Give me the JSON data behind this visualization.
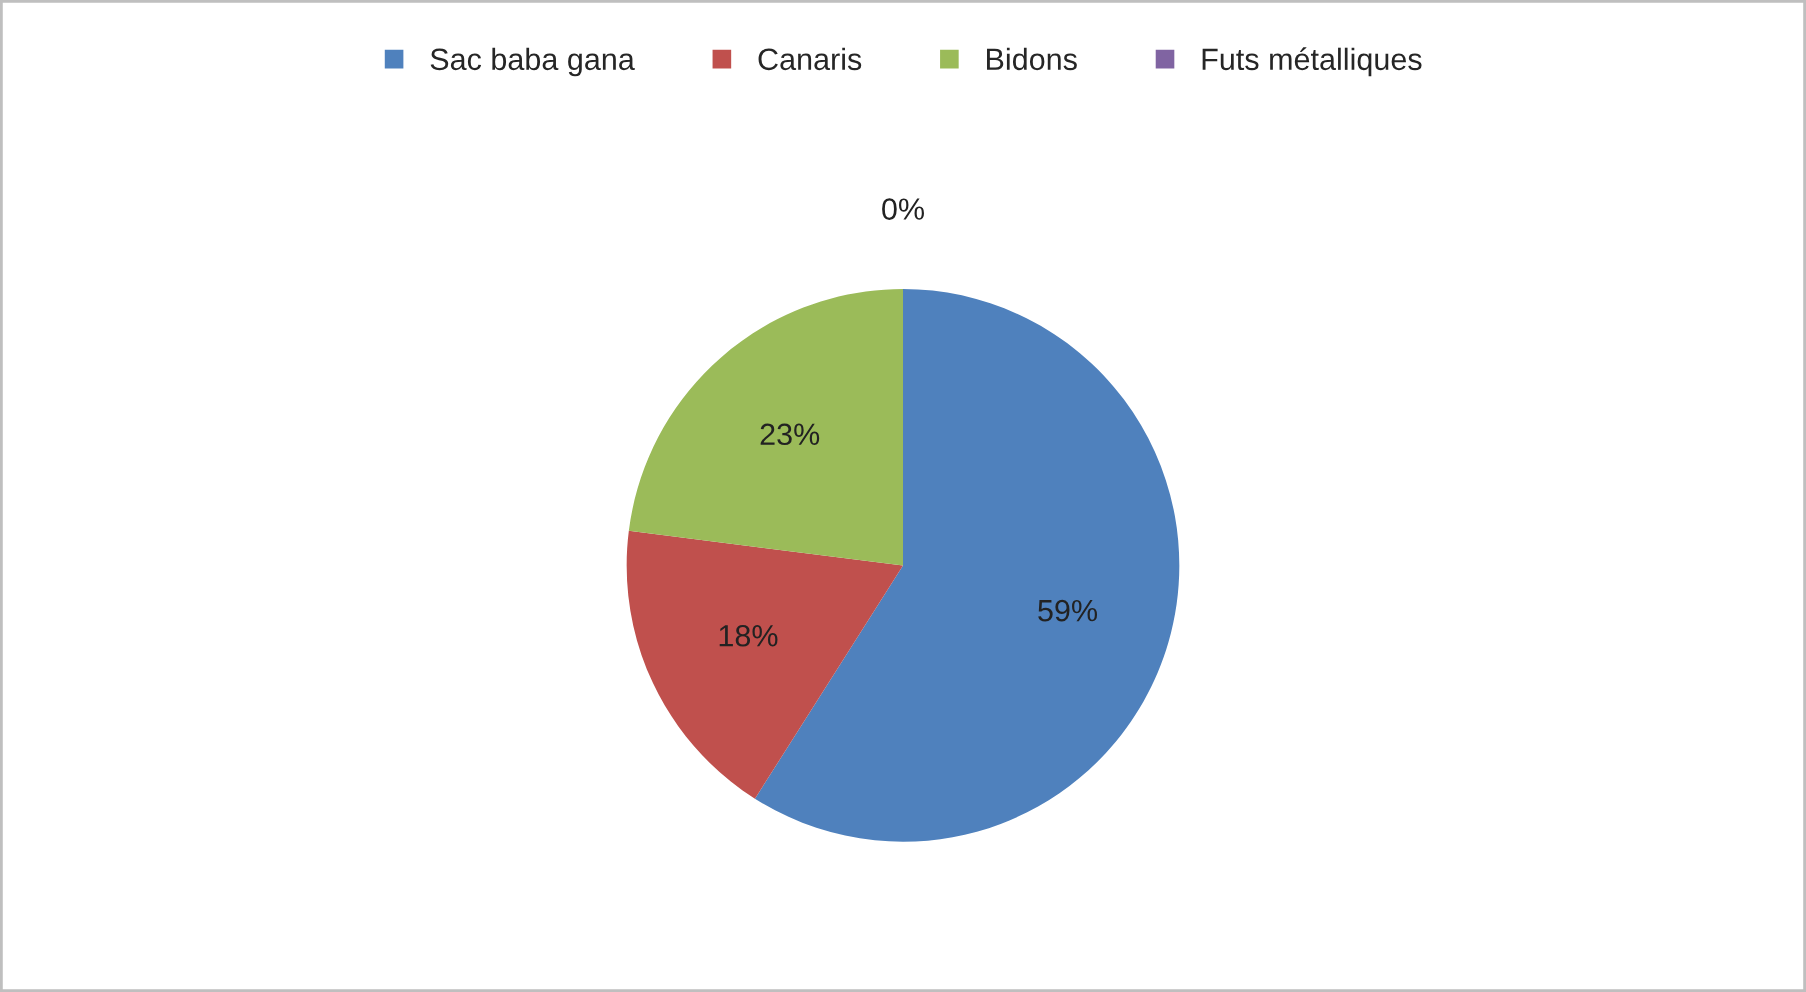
{
  "chart_data": {
    "type": "pie",
    "categories": [
      "Sac baba gana",
      "Canaris",
      "Bidons",
      "Futs métalliques"
    ],
    "values": [
      59,
      18,
      23,
      0
    ],
    "colors": [
      "#4f81bd",
      "#c0504d",
      "#9bbb59",
      "#8064a2"
    ],
    "value_labels": [
      "59%",
      "18%",
      "23%",
      "0%"
    ],
    "legend": "top"
  }
}
